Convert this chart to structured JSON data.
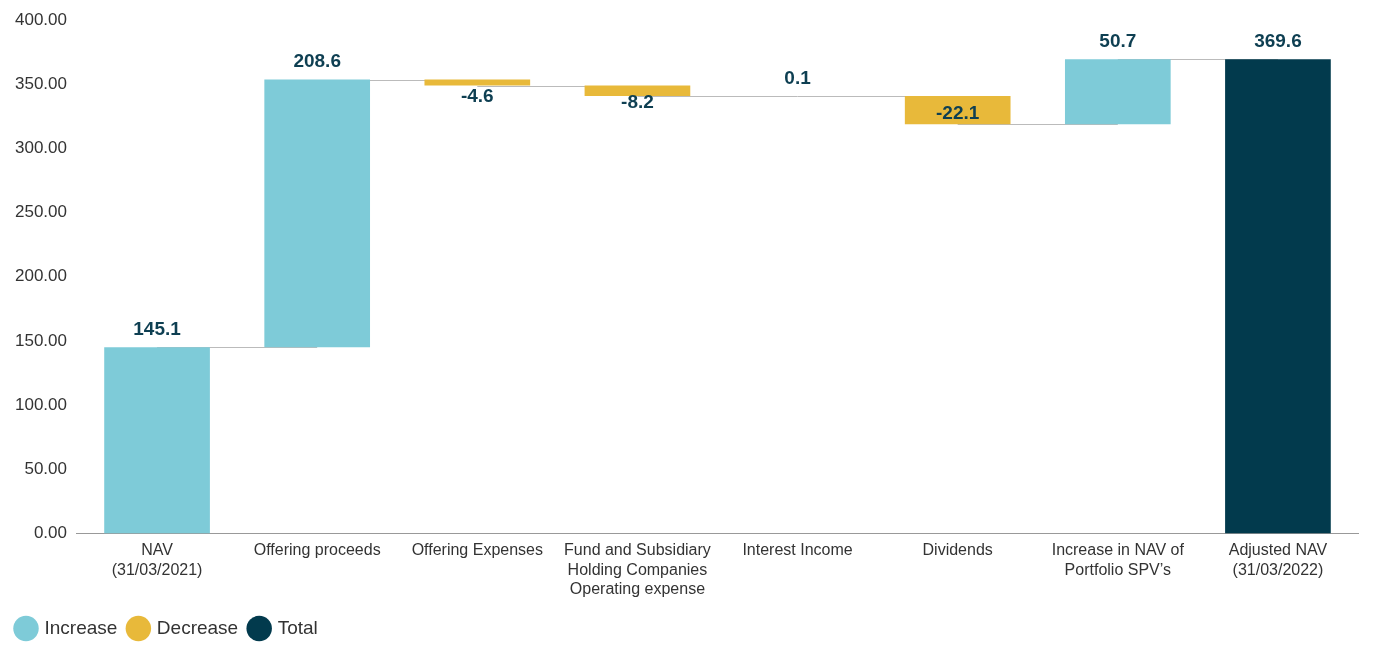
{
  "chart_data": {
    "type": "bar",
    "categories": [
      "NAV (31/03/2021)",
      "Offering proceeds",
      "Offering Expenses",
      "Fund and Subsidiary Holding Companies Operating expense",
      "Interest Income",
      "Dividends",
      "Increase in NAV of Portfolio SPV’s",
      "Adjusted NAV (31/03/2022)"
    ],
    "series": [
      {
        "name": "Increase",
        "color": "#7ecbd8",
        "values": [
          145.1,
          208.6,
          null,
          null,
          0.1,
          null,
          50.7,
          null
        ],
        "base": [
          0,
          145.1,
          null,
          null,
          340.9,
          null,
          318.9,
          null
        ]
      },
      {
        "name": "Decrease",
        "color": "#e8b93a",
        "values": [
          null,
          null,
          -4.6,
          -8.2,
          null,
          -22.1,
          null,
          null
        ],
        "base": [
          null,
          null,
          353.7,
          349.1,
          null,
          341.0,
          null,
          null
        ]
      },
      {
        "name": "Total",
        "color": "#023a4d",
        "values": [
          null,
          null,
          null,
          null,
          null,
          null,
          null,
          369.6
        ],
        "base": [
          null,
          null,
          null,
          null,
          null,
          null,
          null,
          0
        ]
      }
    ],
    "ylim": [
      0,
      400
    ],
    "yticks": [
      {
        "value": 0,
        "label": "0.00"
      },
      {
        "value": 50,
        "label": "50.00"
      },
      {
        "value": 100,
        "label": "100.00"
      },
      {
        "value": 150,
        "label": "150.00"
      },
      {
        "value": 200,
        "label": "200.00"
      },
      {
        "value": 250,
        "label": "250.00"
      },
      {
        "value": 300,
        "label": "300.00"
      },
      {
        "value": 350,
        "label": "350.00"
      },
      {
        "value": 400,
        "label": "400.00"
      }
    ],
    "grid": false,
    "legend": "bottom left",
    "data_labels": true
  }
}
